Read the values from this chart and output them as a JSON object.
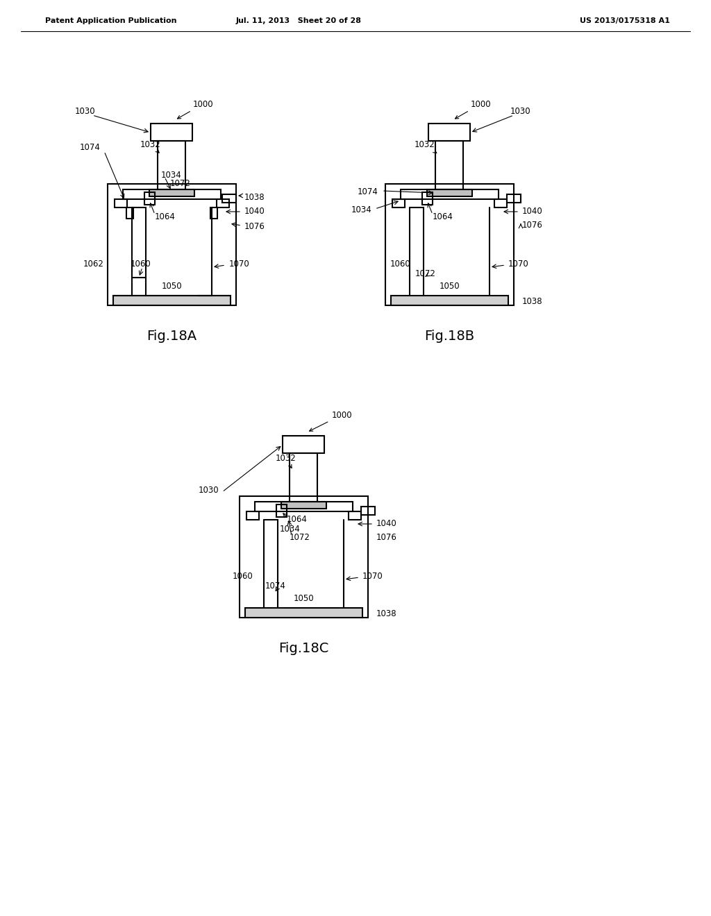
{
  "header_left": "Patent Application Publication",
  "header_mid": "Jul. 11, 2013   Sheet 20 of 28",
  "header_right": "US 2013/0175318 A1",
  "fig_labels": [
    "Fig.18A",
    "Fig.18B",
    "Fig.18C"
  ],
  "bg_color": "#ffffff",
  "line_color": "#000000",
  "line_width": 1.5,
  "thin_line": 0.8
}
